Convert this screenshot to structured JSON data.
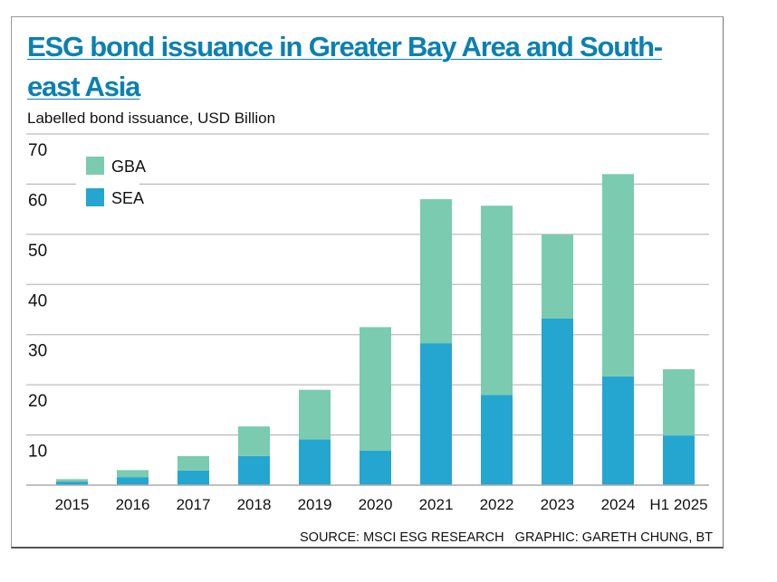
{
  "title": "ESG bond issuance in Greater Bay Area and South-east Asia",
  "subtitle": "Labelled bond issuance, USD Billion",
  "source": "SOURCE: MSCI ESG RESEARCH   GRAPHIC: GARETH CHUNG, BT",
  "chart_data": {
    "type": "bar",
    "stacked": true,
    "title": "ESG bond issuance in Greater Bay Area and South-east Asia",
    "ylabel": "Labelled bond issuance, USD Billion",
    "ylim": [
      0,
      70
    ],
    "yticks": [
      10,
      20,
      30,
      40,
      50,
      60,
      70
    ],
    "grid": true,
    "legend": "top-left",
    "categories": [
      "2015",
      "2016",
      "2017",
      "2018",
      "2019",
      "2020",
      "2021",
      "2022",
      "2023",
      "2024",
      "H1 2025"
    ],
    "series": [
      {
        "name": "SEA",
        "color": "#25a6d0",
        "values": [
          0.7,
          1.6,
          2.9,
          5.8,
          9.1,
          6.9,
          28.3,
          18.0,
          33.2,
          21.7,
          9.9
        ]
      },
      {
        "name": "GBA",
        "color": "#7acbb0",
        "values": [
          0.5,
          1.4,
          2.9,
          5.9,
          9.9,
          24.6,
          28.7,
          37.7,
          16.7,
          40.3,
          13.2
        ]
      }
    ],
    "legend_order": [
      "GBA",
      "SEA"
    ]
  }
}
